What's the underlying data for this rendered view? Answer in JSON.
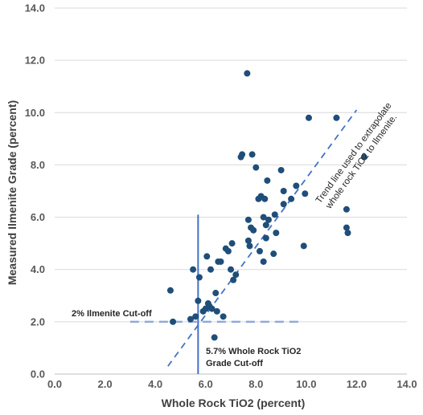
{
  "chart_data": {
    "type": "scatter",
    "xlabel": "Whole Rock TiO2 (percent)",
    "ylabel": "Measured Ilmenite Grade (percent)",
    "xlim": [
      0,
      14
    ],
    "ylim": [
      0,
      14
    ],
    "x_ticks": [
      "0.0",
      "2.0",
      "4.0",
      "6.0",
      "8.0",
      "10.0",
      "12.0",
      "14.0"
    ],
    "y_ticks": [
      "0.0",
      "2.0",
      "4.0",
      "6.0",
      "8.0",
      "10.0",
      "12.0",
      "14.0"
    ],
    "grid": "horizontal",
    "point_color": "#1f4e79",
    "line_color": "#4472c4",
    "points": [
      {
        "x": 4.6,
        "y": 3.2
      },
      {
        "x": 4.7,
        "y": 2.0
      },
      {
        "x": 5.4,
        "y": 2.1
      },
      {
        "x": 5.5,
        "y": 4.0
      },
      {
        "x": 5.6,
        "y": 2.2
      },
      {
        "x": 5.7,
        "y": 2.8
      },
      {
        "x": 5.75,
        "y": 3.7
      },
      {
        "x": 5.9,
        "y": 2.4
      },
      {
        "x": 6.0,
        "y": 2.5
      },
      {
        "x": 6.05,
        "y": 4.5
      },
      {
        "x": 6.1,
        "y": 2.7
      },
      {
        "x": 6.15,
        "y": 2.6
      },
      {
        "x": 6.2,
        "y": 4.0
      },
      {
        "x": 6.25,
        "y": 2.5
      },
      {
        "x": 6.35,
        "y": 1.4
      },
      {
        "x": 6.4,
        "y": 3.1
      },
      {
        "x": 6.45,
        "y": 2.4
      },
      {
        "x": 6.5,
        "y": 4.3
      },
      {
        "x": 6.6,
        "y": 4.3
      },
      {
        "x": 6.7,
        "y": 2.2
      },
      {
        "x": 6.8,
        "y": 4.8
      },
      {
        "x": 6.9,
        "y": 4.7
      },
      {
        "x": 7.0,
        "y": 4.0
      },
      {
        "x": 7.05,
        "y": 5.0
      },
      {
        "x": 7.1,
        "y": 3.6
      },
      {
        "x": 7.2,
        "y": 3.8
      },
      {
        "x": 7.4,
        "y": 8.3
      },
      {
        "x": 7.45,
        "y": 8.4
      },
      {
        "x": 7.65,
        "y": 11.5
      },
      {
        "x": 7.7,
        "y": 5.9
      },
      {
        "x": 7.7,
        "y": 5.1
      },
      {
        "x": 7.75,
        "y": 4.9
      },
      {
        "x": 7.8,
        "y": 5.6
      },
      {
        "x": 7.85,
        "y": 8.4
      },
      {
        "x": 7.9,
        "y": 5.5
      },
      {
        "x": 8.0,
        "y": 7.9
      },
      {
        "x": 8.1,
        "y": 6.7
      },
      {
        "x": 8.15,
        "y": 4.7
      },
      {
        "x": 8.2,
        "y": 6.8
      },
      {
        "x": 8.3,
        "y": 6.0
      },
      {
        "x": 8.3,
        "y": 4.3
      },
      {
        "x": 8.35,
        "y": 6.7
      },
      {
        "x": 8.4,
        "y": 5.7
      },
      {
        "x": 8.4,
        "y": 5.2
      },
      {
        "x": 8.45,
        "y": 7.4
      },
      {
        "x": 8.5,
        "y": 5.9
      },
      {
        "x": 8.7,
        "y": 4.6
      },
      {
        "x": 8.75,
        "y": 6.1
      },
      {
        "x": 8.8,
        "y": 5.4
      },
      {
        "x": 9.0,
        "y": 7.8
      },
      {
        "x": 9.1,
        "y": 6.5
      },
      {
        "x": 9.1,
        "y": 7.0
      },
      {
        "x": 9.4,
        "y": 6.7
      },
      {
        "x": 9.6,
        "y": 7.2
      },
      {
        "x": 9.9,
        "y": 4.9
      },
      {
        "x": 9.95,
        "y": 6.9
      },
      {
        "x": 10.1,
        "y": 9.8
      },
      {
        "x": 11.2,
        "y": 9.8
      },
      {
        "x": 11.6,
        "y": 6.3
      },
      {
        "x": 11.6,
        "y": 5.6
      },
      {
        "x": 11.65,
        "y": 5.4
      },
      {
        "x": 12.3,
        "y": 8.3
      }
    ],
    "trend_line": {
      "x": [
        4.5,
        12.0
      ],
      "y": [
        0.3,
        10.1
      ]
    },
    "ilmenite_cutoff": {
      "value": 2.0,
      "x": [
        3.0,
        9.8
      ]
    },
    "tio2_cutoff": {
      "value": 5.7,
      "y": [
        0.0,
        6.1
      ]
    },
    "annotations": {
      "ilmenite_cutoff_label": "2% Ilmenite Cut-off",
      "tio2_cutoff_line1": "5.7% Whole Rock TiO2",
      "tio2_cutoff_line2": "Grade Cut-off",
      "trend_line1": "Trend line used to extrapolate",
      "trend_line2": "whole rock TiO2 to Ilmenite."
    }
  }
}
